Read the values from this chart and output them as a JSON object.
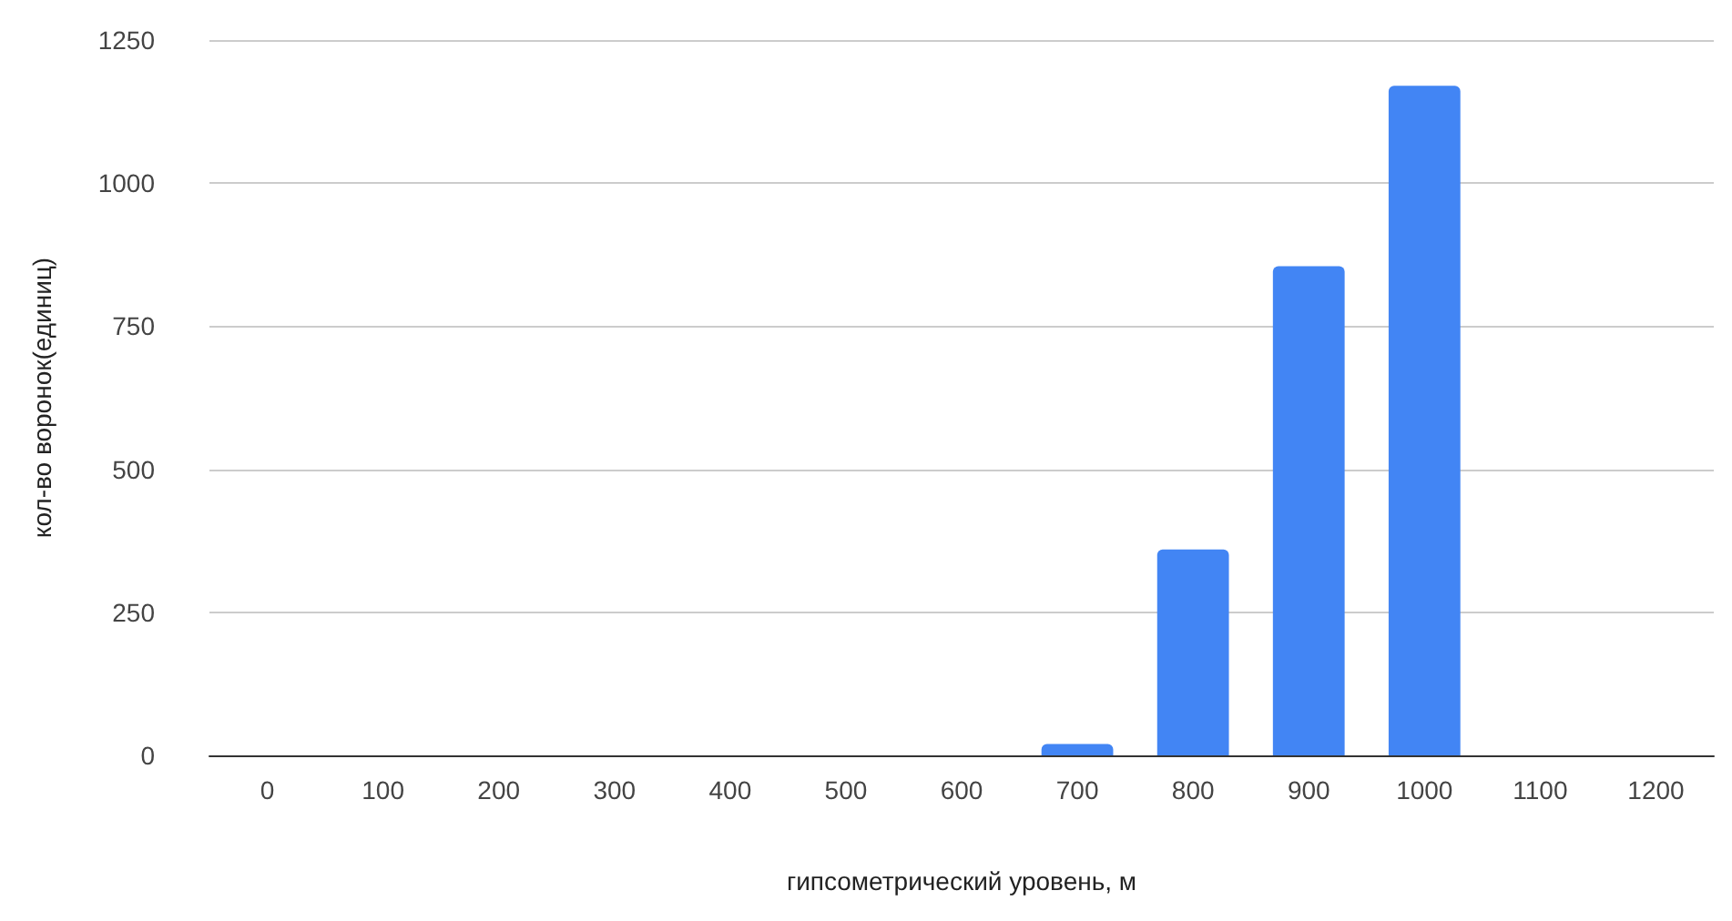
{
  "chart_data": {
    "type": "bar",
    "xlabel": "гипсометрический уровень, м",
    "ylabel": "кол-во воронок(единиц)",
    "categories": [
      "0",
      "100",
      "200",
      "300",
      "400",
      "500",
      "600",
      "700",
      "800",
      "900",
      "1000",
      "1100",
      "1200"
    ],
    "values": [
      0,
      0,
      0,
      0,
      0,
      0,
      0,
      20,
      360,
      855,
      1170,
      0,
      0
    ],
    "color": "#4285f4",
    "ylim": [
      0,
      1250
    ],
    "yticks": [
      0,
      250,
      500,
      750,
      1000,
      1250
    ],
    "grid": "y"
  }
}
